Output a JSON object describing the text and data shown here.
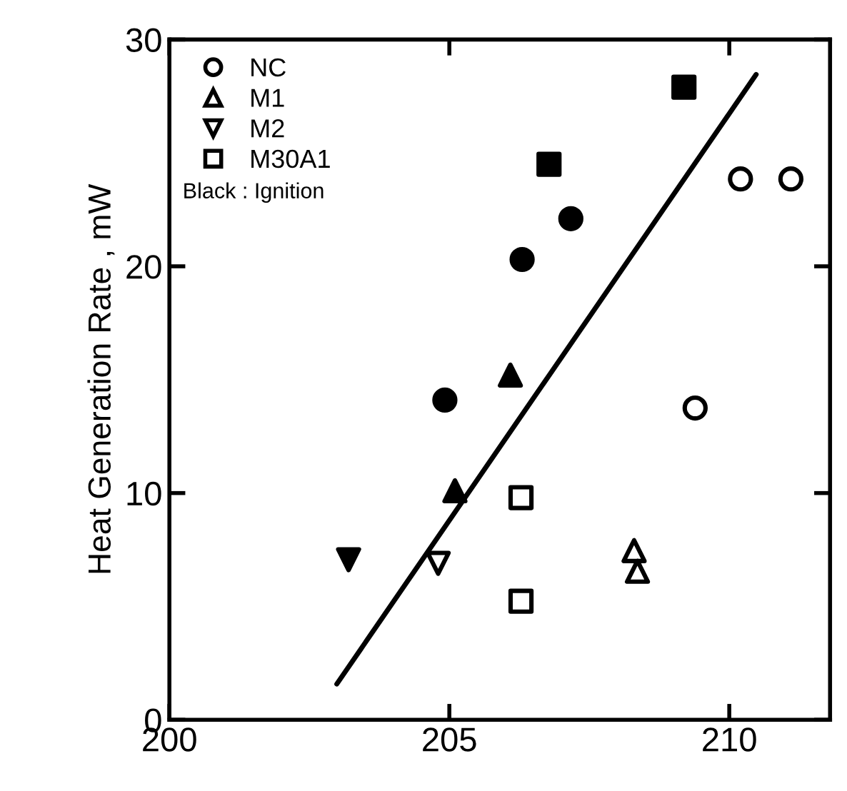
{
  "chart_data": {
    "type": "scatter",
    "ylabel": "Heat Generation Rate , mW",
    "xlim": [
      200,
      211.8
    ],
    "ylim": [
      0,
      30
    ],
    "xticks": [
      200,
      205,
      210
    ],
    "yticks": [
      0,
      10,
      20,
      30
    ],
    "grid": false,
    "legend": "top left",
    "annotations": [
      "Black : Ignition"
    ],
    "series": [
      {
        "name": "NC",
        "color": "#ffffff",
        "marker": "circle",
        "x": [
          210.2,
          211.1,
          209.39
        ],
        "values": [
          23.85,
          23.85,
          13.75
        ]
      },
      {
        "name": "M1",
        "color": "#ffffff",
        "marker": "triangle",
        "x": [
          208.3,
          208.36
        ],
        "values": [
          7.46,
          6.55
        ]
      },
      {
        "name": "M2",
        "color": "#ffffff",
        "marker": "triangle-down",
        "x": [
          204.8
        ],
        "values": [
          6.9
        ]
      },
      {
        "name": "M30A1",
        "color": "#ffffff",
        "marker": "square",
        "x": [
          206.28,
          206.28
        ],
        "values": [
          9.8,
          5.23
        ]
      },
      {
        "color": "#000000",
        "marker": "circle",
        "x": [
          207.17,
          206.3,
          204.92
        ],
        "values": [
          22.1,
          20.3,
          14.1
        ]
      },
      {
        "color": "#000000",
        "marker": "triangle",
        "x": [
          206.09,
          205.1
        ],
        "values": [
          15.2,
          10.1
        ]
      },
      {
        "color": "#000000",
        "marker": "triangle-down",
        "x": [
          203.2
        ],
        "values": [
          7.06
        ]
      },
      {
        "color": "#000000",
        "marker": "square",
        "x": [
          209.19,
          206.78
        ],
        "values": [
          27.9,
          24.5
        ]
      },
      {
        "type": "line",
        "color": "#000000",
        "line_style": "solid",
        "marker": "none",
        "x": [
          202.99,
          210.48
        ],
        "values": [
          1.58,
          28.46
        ]
      }
    ]
  }
}
